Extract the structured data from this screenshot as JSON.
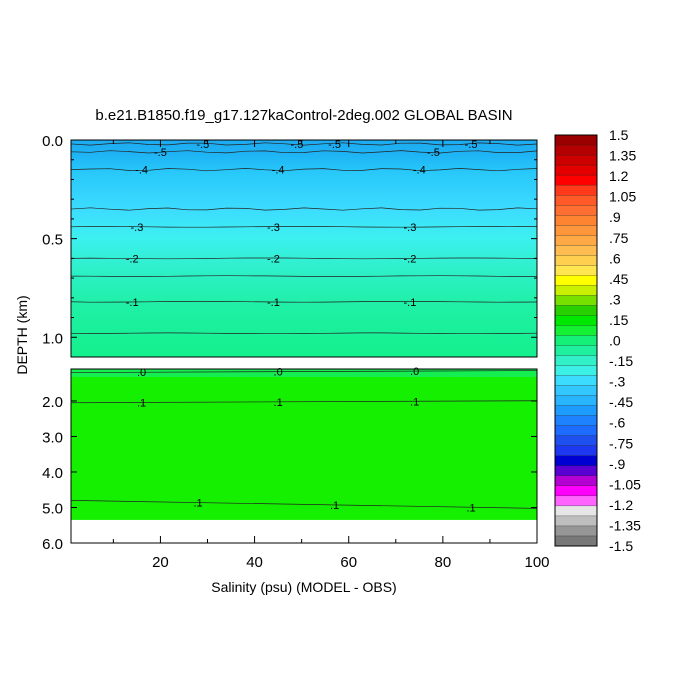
{
  "chart_data": {
    "type": "heatmap",
    "title": "b.e21.B1850.f19_g17.127kaControl-2deg.002 GLOBAL BASIN",
    "xlabel": "Salinity (psu) (MODEL - OBS)",
    "ylabel": "DEPTH (km)",
    "x_ticks": [
      20,
      40,
      60,
      80,
      100
    ],
    "xlim": [
      1,
      100
    ],
    "upper_panel": {
      "ylim": [
        0.0,
        1.1
      ],
      "y_ticks": [
        "0.0",
        "0.5",
        "1.0"
      ],
      "contour_lines": [
        {
          "depth": 0.02,
          "label": "-.5",
          "label_x": [
            29,
            49,
            57,
            86
          ]
        },
        {
          "depth": 0.06,
          "label": "-.5",
          "label_x": [
            20,
            78
          ]
        },
        {
          "depth": 0.15,
          "label": "-.4",
          "label_x": [
            16,
            45,
            75
          ]
        },
        {
          "depth": 0.35,
          "label": ""
        },
        {
          "depth": 0.44,
          "label": "-.3",
          "label_x": [
            15,
            44,
            73
          ]
        },
        {
          "depth": 0.6,
          "label": "-.2",
          "label_x": [
            14,
            44,
            73
          ]
        },
        {
          "depth": 0.69,
          "label": ""
        },
        {
          "depth": 0.82,
          "label": "-.1",
          "label_x": [
            14,
            44,
            73
          ]
        },
        {
          "depth": 0.98,
          "label": ""
        }
      ]
    },
    "lower_panel": {
      "ylim": [
        1.1,
        6.0
      ],
      "y_ticks": [
        "2.0",
        "3.0",
        "4.0",
        "5.0",
        "6.0"
      ],
      "data_bottom": 5.35,
      "contour_lines": [
        {
          "depth": 1.2,
          "label": ".0",
          "label_x": [
            16,
            45,
            74
          ]
        },
        {
          "depth": 2.05,
          "label": ".1",
          "label_x": [
            16,
            45,
            74
          ]
        },
        {
          "depth": 4.8,
          "label": ".1",
          "label_x": [
            28,
            57,
            86
          ]
        }
      ]
    },
    "colorbar": {
      "labels": [
        "1.5",
        "1.35",
        "1.2",
        "1.05",
        ".9",
        ".75",
        ".6",
        ".45",
        ".3",
        ".15",
        ".0",
        "-.15",
        "-.3",
        "-.45",
        "-.6",
        "-.75",
        "-.9",
        "-1.05",
        "-1.2",
        "-1.35",
        "-1.5"
      ],
      "colors": [
        "#9a0000",
        "#b40000",
        "#cc0000",
        "#e40000",
        "#ff0000",
        "#ff3a1a",
        "#ff5a28",
        "#ff6e32",
        "#ff8432",
        "#ff963c",
        "#ffa846",
        "#ffbc50",
        "#ffd050",
        "#ffe650",
        "#ffff00",
        "#c8f000",
        "#78e000",
        "#28d000",
        "#00e800",
        "#14f032",
        "#14f078",
        "#1ef0a0",
        "#32f0c8",
        "#3cf0e6",
        "#3cdcff",
        "#32c8ff",
        "#28b4ff",
        "#1e9bff",
        "#1e82ff",
        "#1e6cff",
        "#1e50f0",
        "#1e37f0",
        "#0000d2",
        "#5a00d2",
        "#b400d2",
        "#ff00ff",
        "#ff64ff",
        "#e6e6e6",
        "#bebebe",
        "#969696",
        "#787878"
      ]
    }
  }
}
